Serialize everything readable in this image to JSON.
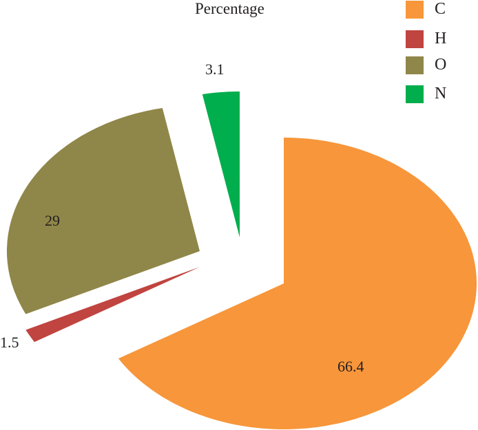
{
  "chart_data": {
    "type": "pie",
    "title": "Percentage",
    "exploded": true,
    "start": "top, clockwise",
    "legend_position": "top-right",
    "slices": [
      {
        "label": "C",
        "value": 66.4,
        "color": "#f7963a"
      },
      {
        "label": "H",
        "value": 1.5,
        "color": "#c0443f"
      },
      {
        "label": "O",
        "value": 29,
        "color": "#8f8649"
      },
      {
        "label": "N",
        "value": 3.1,
        "color": "#00ae4d"
      }
    ]
  }
}
